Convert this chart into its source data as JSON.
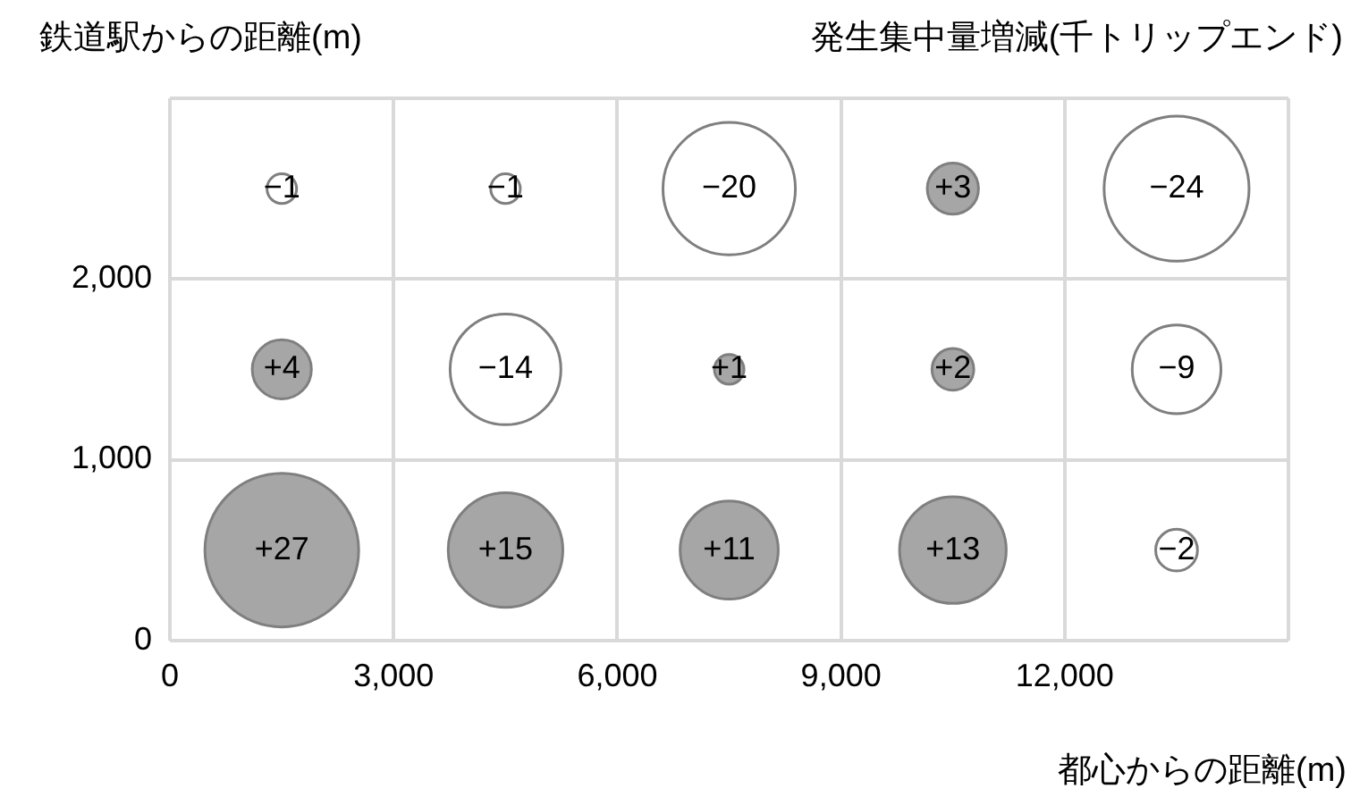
{
  "chart_data": {
    "type": "bubble",
    "title": "発生集中量増減(千トリップエンド)",
    "ylabel": "鉄道駅からの距離(m)",
    "xlabel": "都心からの距離(m)",
    "x": [
      1500,
      4500,
      7500,
      10500,
      13500,
      1500,
      4500,
      7500,
      10500,
      13500,
      1500,
      4500,
      7500,
      10500,
      13500
    ],
    "values": [
      2500,
      2500,
      2500,
      2500,
      2500,
      1500,
      1500,
      1500,
      1500,
      1500,
      500,
      500,
      500,
      500,
      500
    ],
    "sizes": [
      0.037,
      0.037,
      0.741,
      0.111,
      0.889,
      0.148,
      0.519,
      0.037,
      0.074,
      0.333,
      1,
      0.556,
      0.407,
      0.481,
      0.074
    ],
    "annotations": [
      {
        "text": "−1",
        "x": 1500,
        "y": 2500
      },
      {
        "text": "−1",
        "x": 4500,
        "y": 2500
      },
      {
        "text": "−20",
        "x": 7500,
        "y": 2500
      },
      {
        "text": "+3",
        "x": 10500,
        "y": 2500
      },
      {
        "text": "−24",
        "x": 13500,
        "y": 2500
      },
      {
        "text": "+4",
        "x": 1500,
        "y": 1500
      },
      {
        "text": "−14",
        "x": 4500,
        "y": 1500
      },
      {
        "text": "+1",
        "x": 7500,
        "y": 1500
      },
      {
        "text": "+2",
        "x": 10500,
        "y": 1500
      },
      {
        "text": "−9",
        "x": 13500,
        "y": 1500
      },
      {
        "text": "+27",
        "x": 1500,
        "y": 500
      },
      {
        "text": "+15",
        "x": 4500,
        "y": 500
      },
      {
        "text": "+11",
        "x": 7500,
        "y": 500
      },
      {
        "text": "+13",
        "x": 10500,
        "y": 500
      },
      {
        "text": "−2",
        "x": 13500,
        "y": 500
      }
    ],
    "colors": [
      "#ffffff",
      "#ffffff",
      "#ffffff",
      "#a6a6a6",
      "#ffffff",
      "#a6a6a6",
      "#ffffff",
      "#a6a6a6",
      "#a6a6a6",
      "#ffffff",
      "#a6a6a6",
      "#a6a6a6",
      "#a6a6a6",
      "#a6a6a6",
      "#ffffff"
    ],
    "xlim": [
      0,
      15000
    ],
    "xticks": [
      0,
      {
        "value": 3000,
        "label": "3,000"
      },
      {
        "value": 6000,
        "label": "6,000"
      },
      {
        "value": 9000,
        "label": "9,000"
      },
      {
        "value": 12000,
        "label": "12,000"
      },
      {
        "value": 15000,
        "label": null
      }
    ],
    "ylim": [
      0,
      3000
    ],
    "yticks": [
      0,
      {
        "value": 1000,
        "label": "1,000"
      },
      {
        "value": 2000,
        "label": "2,000"
      },
      {
        "value": 3000,
        "label": null
      }
    ],
    "grid": true,
    "legend": false
  }
}
